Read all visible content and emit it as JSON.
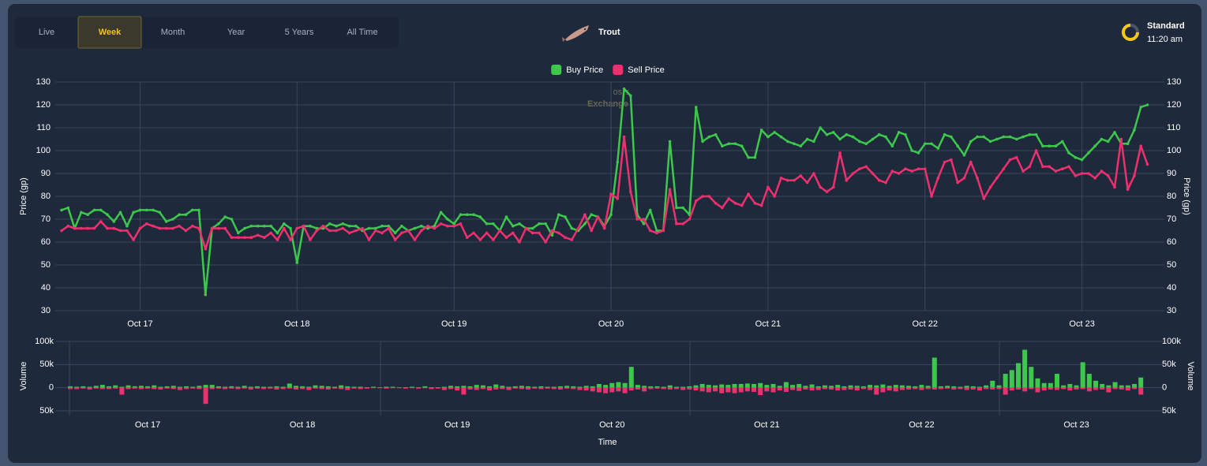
{
  "toolbar": {
    "tabs": [
      {
        "label": "Live"
      },
      {
        "label": "Week",
        "selected": true
      },
      {
        "label": "Month"
      },
      {
        "label": "Year"
      },
      {
        "label": "5 Years"
      },
      {
        "label": "All Time"
      }
    ]
  },
  "item": {
    "name": "Trout"
  },
  "status": {
    "mode": "Standard",
    "time": "11:20 am"
  },
  "watermark": {
    "top": "osrs",
    "bottom": "Exchange"
  },
  "chart_data": [
    {
      "type": "line",
      "y_label": "Price (gp)",
      "y2_label": "Price (gp)",
      "legend": "top",
      "grid": true,
      "categories": [
        null,
        null,
        null,
        null,
        null,
        null,
        null,
        null,
        null,
        null,
        null,
        null,
        "Oct 17",
        null,
        null,
        null,
        null,
        null,
        null,
        null,
        null,
        null,
        null,
        null,
        null,
        null,
        null,
        null,
        null,
        null,
        null,
        null,
        null,
        null,
        null,
        null,
        "Oct 18",
        null,
        null,
        null,
        null,
        null,
        null,
        null,
        null,
        null,
        null,
        null,
        null,
        null,
        null,
        null,
        null,
        null,
        null,
        null,
        null,
        null,
        null,
        null,
        "Oct 19",
        null,
        null,
        null,
        null,
        null,
        null,
        null,
        null,
        null,
        null,
        null,
        null,
        null,
        null,
        null,
        null,
        null,
        null,
        null,
        null,
        null,
        null,
        null,
        "Oct 20",
        null,
        null,
        null,
        null,
        null,
        null,
        null,
        null,
        null,
        null,
        null,
        null,
        null,
        null,
        null,
        null,
        null,
        null,
        null,
        null,
        null,
        null,
        null,
        "Oct 21",
        null,
        null,
        null,
        null,
        null,
        null,
        null,
        null,
        null,
        null,
        null,
        null,
        null,
        null,
        null,
        null,
        null,
        null,
        null,
        null,
        null,
        null,
        null,
        "Oct 22",
        null,
        null,
        null,
        null,
        null,
        null,
        null,
        null,
        null,
        null,
        null,
        null,
        null,
        null,
        null,
        null,
        null,
        null,
        null,
        null,
        null,
        null,
        null,
        "Oct 23",
        null,
        null,
        null,
        null,
        null,
        null,
        null,
        null,
        null,
        null
      ],
      "series": [
        {
          "name": "Buy Price",
          "color": "#3cc84a",
          "values": [
            74,
            75,
            66,
            73,
            72,
            74,
            74,
            72,
            69,
            73,
            67,
            73,
            74,
            74,
            74,
            73,
            69,
            70,
            72,
            72,
            74,
            74,
            37,
            66,
            68,
            71,
            70,
            64,
            66,
            67,
            67,
            67,
            67,
            64,
            68,
            66,
            51,
            67,
            67,
            66,
            66,
            68,
            67,
            68,
            67,
            67,
            65,
            66,
            66,
            67,
            67,
            64,
            67,
            65,
            66,
            67,
            66,
            67,
            73,
            70,
            68,
            72,
            72,
            72,
            71,
            68,
            68,
            65,
            71,
            67,
            68,
            66,
            66,
            68,
            68,
            63,
            72,
            71,
            66,
            65,
            68,
            72,
            71,
            67,
            72,
            95,
            127,
            124,
            72,
            68,
            74,
            65,
            65,
            104,
            75,
            75,
            72,
            119,
            104,
            106,
            107,
            102,
            103,
            103,
            102,
            97,
            97,
            109,
            106,
            108,
            106,
            104,
            103,
            102,
            105,
            104,
            110,
            107,
            108,
            105,
            107,
            106,
            104,
            103,
            105,
            107,
            106,
            102,
            108,
            107,
            100,
            99,
            103,
            103,
            101,
            107,
            106,
            102,
            98,
            104,
            106,
            106,
            104,
            105,
            106,
            106,
            105,
            106,
            107,
            107,
            102,
            102,
            102,
            104,
            99,
            97,
            96,
            99,
            102,
            105,
            104,
            108,
            103,
            103,
            109,
            119,
            120
          ]
        },
        {
          "name": "Sell Price",
          "color": "#f0306e",
          "values": [
            65,
            67,
            66,
            66,
            66,
            66,
            69,
            66,
            66,
            65,
            65,
            61,
            66,
            68,
            67,
            66,
            66,
            66,
            67,
            65,
            67,
            66,
            57,
            66,
            66,
            66,
            62,
            62,
            62,
            62,
            63,
            62,
            64,
            61,
            66,
            61,
            66,
            67,
            61,
            65,
            67,
            65,
            65,
            66,
            64,
            65,
            66,
            61,
            65,
            64,
            66,
            61,
            64,
            65,
            61,
            65,
            67,
            66,
            68,
            67,
            67,
            68,
            62,
            64,
            61,
            64,
            61,
            65,
            62,
            64,
            60,
            66,
            64,
            64,
            60,
            65,
            64,
            62,
            61,
            66,
            72,
            65,
            71,
            66,
            81,
            79,
            106,
            82,
            70,
            70,
            65,
            64,
            65,
            83,
            68,
            68,
            70,
            78,
            80,
            80,
            77,
            75,
            79,
            77,
            76,
            81,
            77,
            76,
            84,
            80,
            88,
            87,
            87,
            89,
            86,
            90,
            84,
            82,
            84,
            99,
            87,
            90,
            92,
            93,
            90,
            87,
            86,
            91,
            90,
            92,
            91,
            92,
            92,
            80,
            88,
            95,
            96,
            86,
            88,
            95,
            88,
            79,
            84,
            88,
            92,
            96,
            97,
            91,
            93,
            100,
            93,
            93,
            91,
            92,
            93,
            89,
            90,
            90,
            88,
            91,
            89,
            84,
            105,
            83,
            89,
            102,
            94
          ]
        }
      ],
      "ylim": [
        30,
        130
      ],
      "yticks": [
        30,
        40,
        50,
        60,
        70,
        80,
        90,
        100,
        110,
        120,
        130
      ],
      "y2lim": [
        30,
        130
      ],
      "y2ticks": [
        30,
        40,
        50,
        60,
        70,
        80,
        90,
        100,
        110,
        120,
        130
      ]
    },
    {
      "type": "bar",
      "x_label": "Time",
      "y_label": "Volume",
      "y2_label": "Volume",
      "grid": true,
      "categories": [
        null,
        null,
        null,
        null,
        null,
        null,
        null,
        null,
        null,
        null,
        null,
        null,
        "Oct 17",
        null,
        null,
        null,
        null,
        null,
        null,
        null,
        null,
        null,
        null,
        null,
        null,
        null,
        null,
        null,
        null,
        null,
        null,
        null,
        null,
        null,
        null,
        null,
        "Oct 18",
        null,
        null,
        null,
        null,
        null,
        null,
        null,
        null,
        null,
        null,
        null,
        null,
        null,
        null,
        null,
        null,
        null,
        null,
        null,
        null,
        null,
        null,
        null,
        "Oct 19",
        null,
        null,
        null,
        null,
        null,
        null,
        null,
        null,
        null,
        null,
        null,
        null,
        null,
        null,
        null,
        null,
        null,
        null,
        null,
        null,
        null,
        null,
        null,
        "Oct 20",
        null,
        null,
        null,
        null,
        null,
        null,
        null,
        null,
        null,
        null,
        null,
        null,
        null,
        null,
        null,
        null,
        null,
        null,
        null,
        null,
        null,
        null,
        null,
        "Oct 21",
        null,
        null,
        null,
        null,
        null,
        null,
        null,
        null,
        null,
        null,
        null,
        null,
        null,
        null,
        null,
        null,
        null,
        null,
        null,
        null,
        null,
        null,
        null,
        "Oct 22",
        null,
        null,
        null,
        null,
        null,
        null,
        null,
        null,
        null,
        null,
        null,
        null,
        null,
        null,
        null,
        null,
        null,
        null,
        null,
        null,
        null,
        null,
        null,
        "Oct 23",
        null,
        null,
        null,
        null,
        null,
        null,
        null,
        null,
        null,
        null
      ],
      "series": [
        {
          "color": "#3cc84a",
          "values": [
            3000,
            2000,
            3000,
            2000,
            4000,
            6000,
            3000,
            5000,
            2000,
            5000,
            3000,
            4000,
            3000,
            5000,
            2000,
            3000,
            4000,
            2000,
            3000,
            2000,
            4000,
            6000,
            6000,
            3000,
            2000,
            3000,
            2000,
            4000,
            2000,
            3000,
            2000,
            2000,
            3000,
            2000,
            9000,
            4000,
            3000,
            2000,
            5000,
            4000,
            3000,
            2000,
            5000,
            3000,
            2000,
            2000,
            1000,
            2000,
            1000,
            2000,
            2000,
            1000,
            1000,
            2000,
            1000,
            3000,
            1000,
            1000,
            2000,
            4000,
            3000,
            4000,
            3000,
            6000,
            5000,
            3000,
            7000,
            4000,
            2000,
            3000,
            4000,
            3000,
            2000,
            3000,
            2000,
            2000,
            3000,
            4000,
            3000,
            2000,
            4000,
            3000,
            8000,
            6000,
            10000,
            12000,
            10000,
            45000,
            6000,
            4000,
            3000,
            3000,
            2000,
            5000,
            2000,
            2000,
            3000,
            5000,
            8000,
            6000,
            5000,
            7000,
            6000,
            8000,
            8000,
            9000,
            8000,
            10000,
            6000,
            8000,
            4000,
            12000,
            6000,
            8000,
            4000,
            7000,
            3000,
            5000,
            4000,
            6000,
            3000,
            5000,
            4000,
            3000,
            6000,
            5000,
            7000,
            4000,
            6000,
            5000,
            4000,
            3000,
            6000,
            4000,
            65000,
            3000,
            4000,
            3000,
            2000,
            4000,
            3000,
            2000,
            5000,
            15000,
            5000,
            30000,
            38000,
            53000,
            82000,
            45000,
            20000,
            10000,
            10000,
            30000,
            5000,
            8000,
            5000,
            55000,
            30000,
            15000,
            8000,
            5000,
            12000,
            5000,
            5000,
            8000,
            22000
          ]
        },
        {
          "color": "#f0306e",
          "values": [
            -3000,
            -3000,
            -2000,
            -4000,
            -2000,
            -3000,
            -3000,
            -2000,
            -15000,
            -3000,
            -2000,
            -3000,
            -2000,
            -3000,
            -4000,
            -2000,
            -3000,
            -5000,
            -3000,
            -2000,
            -3000,
            -35000,
            -3000,
            -2000,
            -3000,
            -2000,
            -3000,
            -2000,
            -4000,
            -2000,
            -3000,
            -2000,
            -4000,
            -3000,
            -2000,
            -4000,
            -3000,
            -5000,
            -2000,
            -3000,
            -4000,
            -2000,
            -3000,
            -5000,
            -2000,
            -3000,
            -2000,
            -1000,
            -1000,
            -2000,
            -1000,
            -1000,
            -2000,
            -1000,
            -2000,
            -1000,
            -3000,
            -2000,
            -5000,
            -3000,
            -6000,
            -15000,
            -4000,
            -5000,
            -3000,
            -6000,
            -4000,
            -3000,
            -5000,
            -2000,
            -3000,
            -4000,
            -2000,
            -3000,
            -2000,
            -3000,
            -4000,
            -2000,
            -3000,
            -5000,
            -6000,
            -8000,
            -10000,
            -12000,
            -10000,
            -8000,
            -12000,
            -6000,
            -4000,
            -8000,
            -3000,
            -2000,
            -3000,
            -4000,
            -3000,
            -5000,
            -4000,
            -6000,
            -8000,
            -10000,
            -8000,
            -12000,
            -10000,
            -12000,
            -10000,
            -8000,
            -9000,
            -16000,
            -8000,
            -10000,
            -6000,
            -9000,
            -5000,
            -7000,
            -4000,
            -6000,
            -5000,
            -3000,
            -4000,
            -6000,
            -5000,
            -4000,
            -6000,
            -3000,
            -5000,
            -15000,
            -10000,
            -6000,
            -8000,
            -5000,
            -4000,
            -3000,
            -5000,
            -3000,
            -4000,
            -3000,
            -2000,
            -4000,
            -3000,
            -5000,
            -4000,
            -6000,
            -3000,
            -4000,
            -3000,
            -15000,
            -6000,
            -4000,
            -8000,
            -3000,
            -10000,
            -6000,
            -4000,
            -5000,
            -3000,
            -6000,
            -4000,
            -3000,
            -8000,
            -5000,
            -4000,
            -10000,
            -3000,
            -4000,
            -6000,
            -3000,
            -15000
          ]
        }
      ],
      "ylim": [
        -50000,
        100000
      ],
      "yticks": [
        {
          "value": -50000,
          "label": "50k"
        },
        0,
        {
          "value": 50000,
          "label": "50k"
        },
        {
          "value": 100000,
          "label": "100k"
        }
      ],
      "y2lim": [
        -50000,
        100000
      ],
      "y2ticks": [
        {
          "value": -50000,
          "label": "50k"
        },
        0,
        {
          "value": 50000,
          "label": "50k"
        },
        {
          "value": 100000,
          "label": "100k"
        }
      ]
    }
  ]
}
